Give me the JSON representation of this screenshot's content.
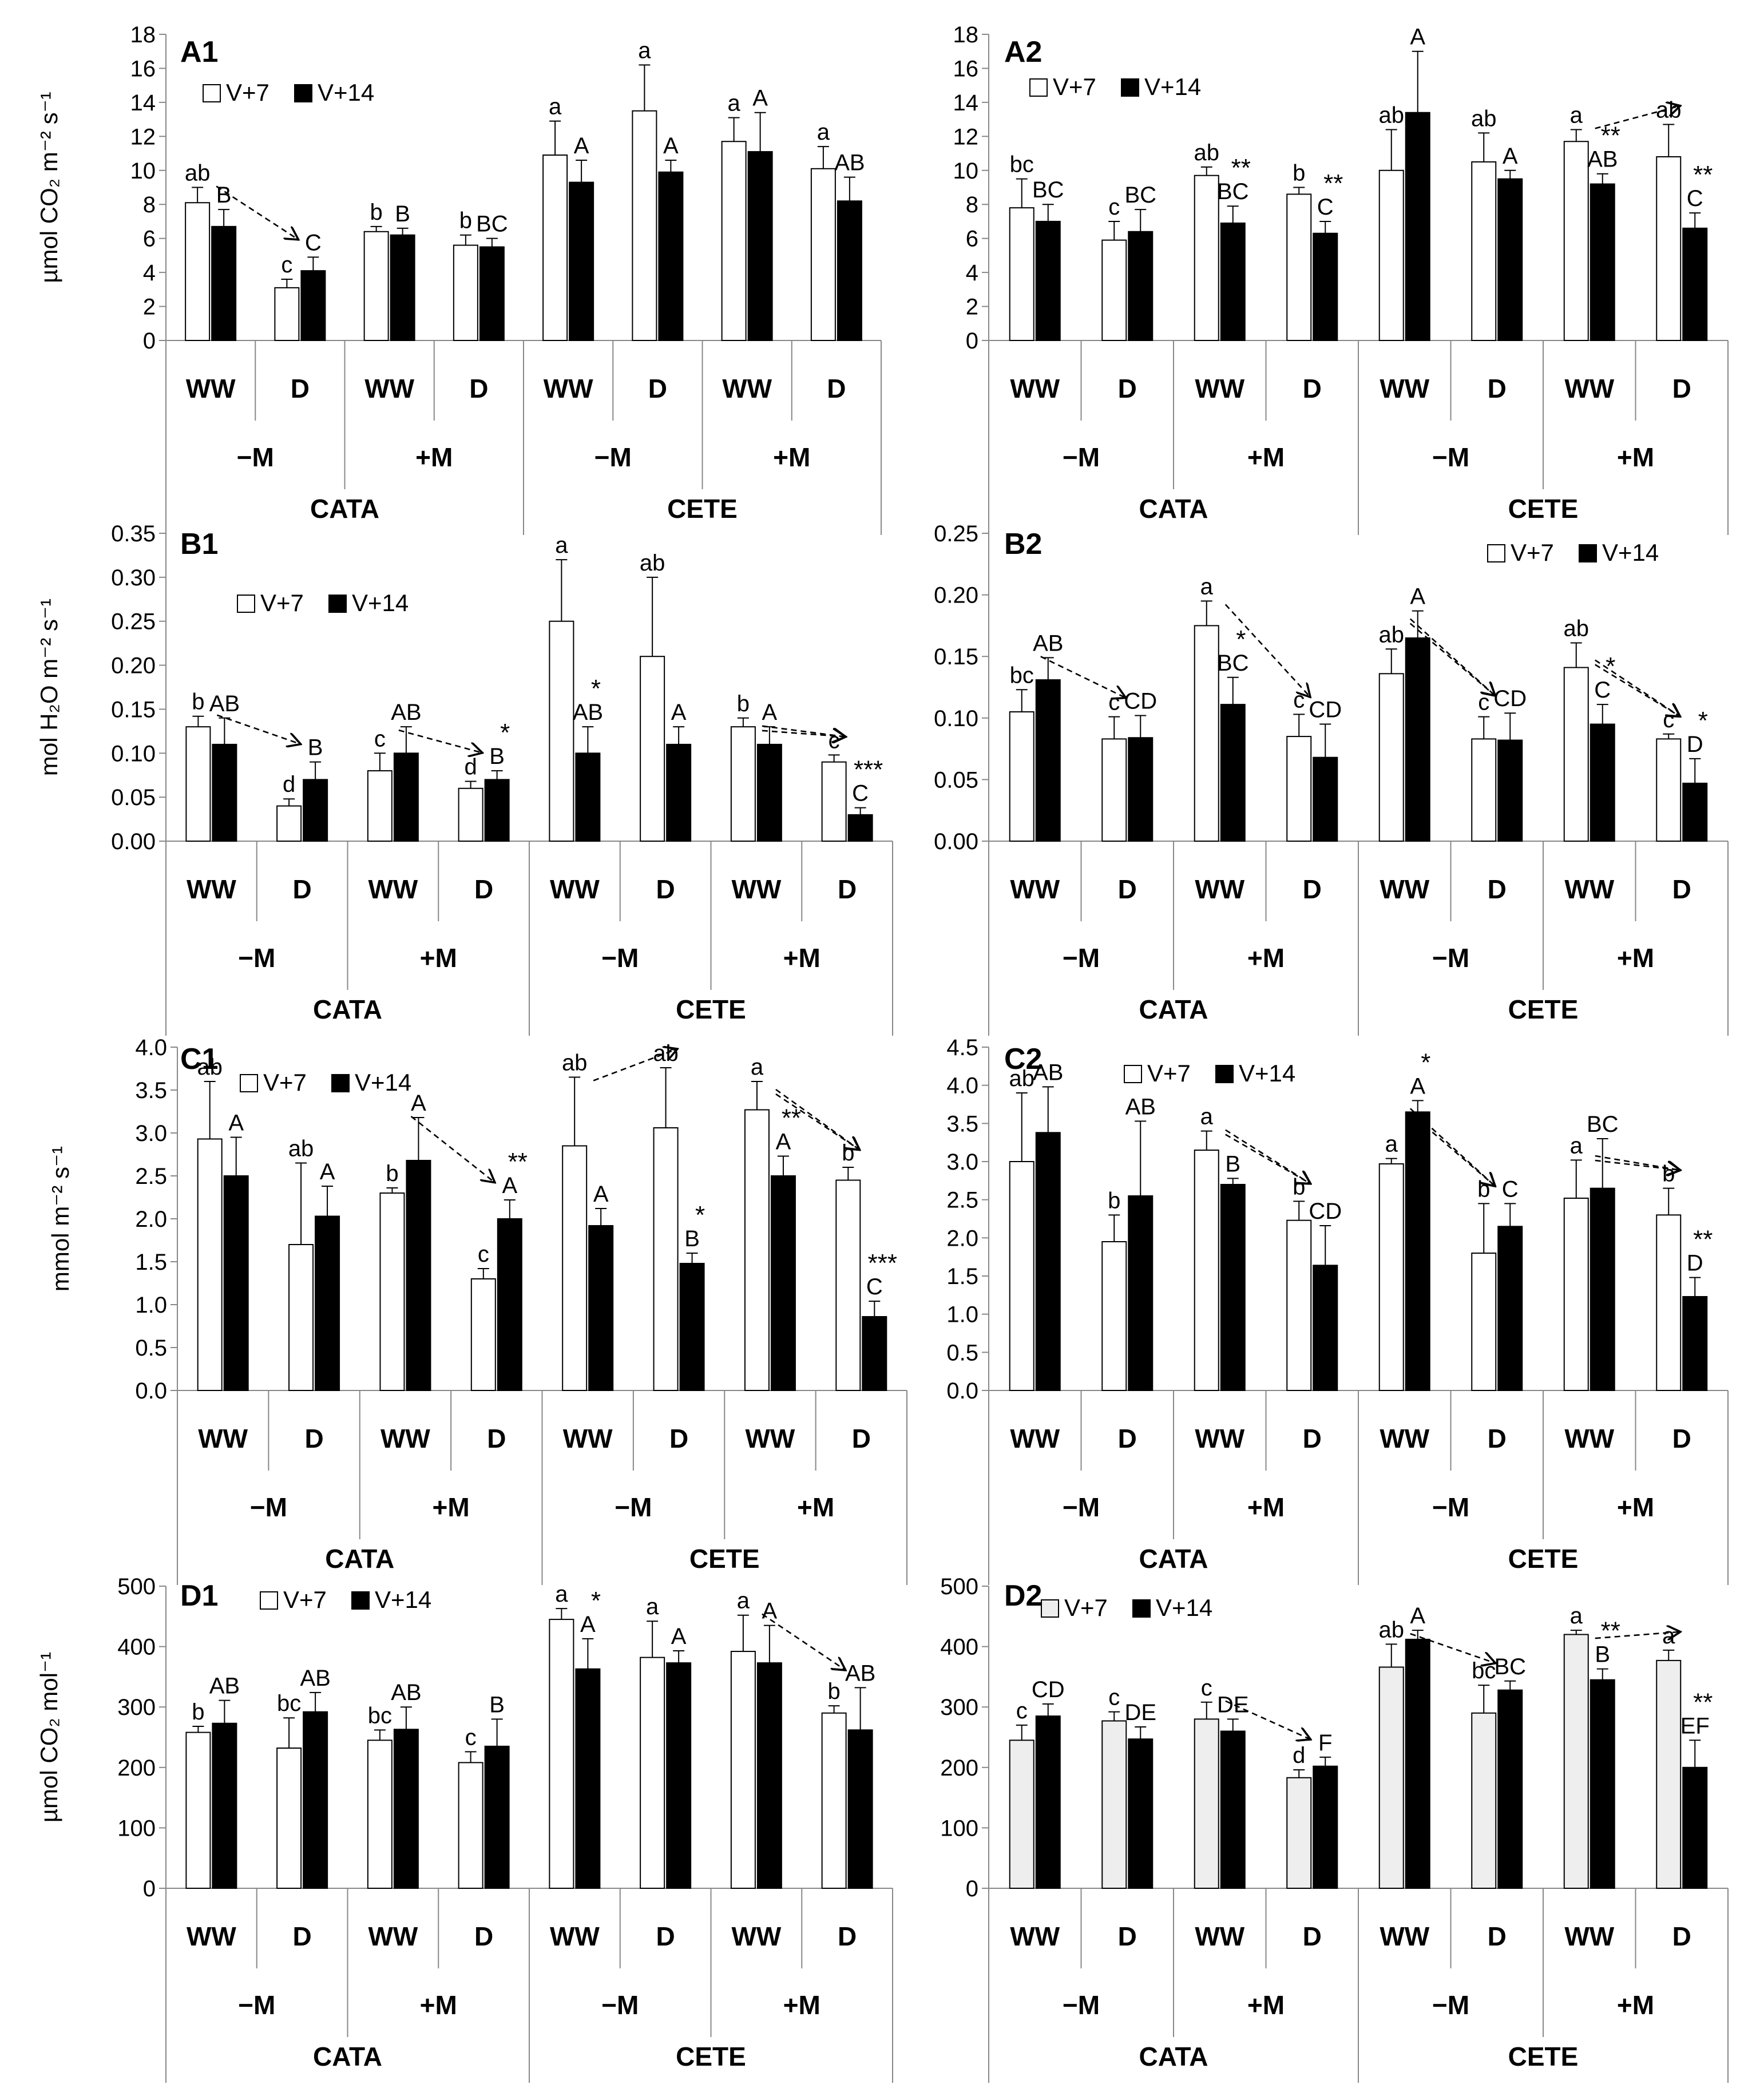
{
  "legend": {
    "v7": "V+7",
    "v14": "V+14"
  },
  "x_groups": {
    "water": [
      "WW",
      "D",
      "WW",
      "D",
      "WW",
      "D",
      "WW",
      "D"
    ],
    "mycorrhiza": [
      "−M",
      "+M",
      "−M",
      "+M"
    ],
    "genotype": [
      "CATA",
      "CETE"
    ]
  },
  "colors": {
    "v7": "#ffffff",
    "v7_d2": "#eeeeee",
    "v14": "#000000"
  },
  "chart_data": [
    {
      "id": "A1",
      "type": "bar",
      "ylabel": "µmol CO₂ m⁻² s⁻¹",
      "ylim": [
        0,
        18
      ],
      "yticks": [
        "0",
        "2",
        "4",
        "6",
        "8",
        "10",
        "12",
        "14",
        "16",
        "18"
      ],
      "legend_position": "top-left",
      "series": [
        {
          "name": "V+7",
          "values": [
            8.1,
            3.1,
            6.4,
            5.6,
            10.9,
            13.5,
            11.7,
            10.1
          ],
          "err": [
            0.9,
            0.5,
            0.3,
            0.6,
            2.0,
            2.7,
            1.4,
            1.3
          ],
          "labels": [
            "ab",
            "c",
            "b",
            "b",
            "a",
            "a",
            "a",
            "a"
          ]
        },
        {
          "name": "V+14",
          "values": [
            6.7,
            4.1,
            6.2,
            5.5,
            9.3,
            9.9,
            11.1,
            8.2
          ],
          "err": [
            1.0,
            0.8,
            0.4,
            0.5,
            1.3,
            0.7,
            2.3,
            1.4
          ],
          "labels": [
            "B",
            "C",
            "B",
            "BC",
            "A",
            "A",
            "A",
            "AB"
          ]
        }
      ],
      "annotations": [],
      "arrows": [
        [
          0,
          1
        ]
      ]
    },
    {
      "id": "A2",
      "type": "bar",
      "ylabel": "",
      "ylim": [
        0,
        18
      ],
      "yticks": [
        "0",
        "2",
        "4",
        "6",
        "8",
        "10",
        "12",
        "14",
        "16",
        "18"
      ],
      "legend_position": "top-left",
      "series": [
        {
          "name": "V+7",
          "values": [
            7.8,
            5.9,
            9.7,
            8.6,
            10.0,
            10.5,
            11.7,
            10.8
          ],
          "err": [
            1.7,
            1.1,
            0.5,
            0.4,
            2.4,
            1.7,
            0.7,
            1.9
          ],
          "labels": [
            "bc",
            "c",
            "ab",
            "b",
            "ab",
            "ab",
            "a",
            "ab"
          ]
        },
        {
          "name": "V+14",
          "values": [
            7.0,
            6.4,
            6.9,
            6.3,
            13.4,
            9.5,
            9.2,
            6.6
          ],
          "err": [
            1.0,
            1.3,
            1.0,
            0.7,
            3.6,
            0.5,
            0.6,
            0.9
          ],
          "labels": [
            "BC",
            "BC",
            "BC",
            "C",
            "A",
            "A",
            "AB",
            "C"
          ]
        }
      ],
      "annotations": [
        "",
        "",
        "**",
        "**",
        "",
        "",
        "**",
        "**"
      ],
      "arrows": [
        [
          6,
          7
        ]
      ]
    },
    {
      "id": "B1",
      "type": "bar",
      "ylabel": "mol H₂O m⁻² s⁻¹",
      "ylim": [
        0,
        0.35
      ],
      "yticks": [
        "0.00",
        "0.05",
        "0.10",
        "0.15",
        "0.20",
        "0.25",
        "0.30",
        "0.35"
      ],
      "legend_position": "top-left",
      "series": [
        {
          "name": "V+7",
          "values": [
            0.13,
            0.04,
            0.08,
            0.06,
            0.25,
            0.21,
            0.13,
            0.09
          ],
          "err": [
            0.012,
            0.008,
            0.02,
            0.008,
            0.07,
            0.09,
            0.01,
            0.008
          ],
          "labels": [
            "b",
            "d",
            "c",
            "d",
            "a",
            "ab",
            "b",
            "c"
          ]
        },
        {
          "name": "V+14",
          "values": [
            0.11,
            0.07,
            0.1,
            0.07,
            0.1,
            0.11,
            0.11,
            0.03
          ],
          "err": [
            0.03,
            0.02,
            0.03,
            0.01,
            0.03,
            0.02,
            0.02,
            0.008
          ],
          "labels": [
            "AB",
            "B",
            "AB",
            "B",
            "AB",
            "A",
            "A",
            "C"
          ]
        }
      ],
      "annotations": [
        "",
        "",
        "",
        "*",
        "*",
        "",
        "",
        "***"
      ],
      "arrows": [
        [
          0,
          1
        ],
        [
          2,
          3
        ],
        [
          6,
          7
        ],
        [
          6,
          7
        ]
      ]
    },
    {
      "id": "B2",
      "type": "bar",
      "ylabel": "",
      "ylim": [
        0,
        0.25
      ],
      "yticks": [
        "0.00",
        "0.05",
        "0.10",
        "0.15",
        "0.20",
        "0.25"
      ],
      "legend_position": "top-right",
      "series": [
        {
          "name": "V+7",
          "values": [
            0.105,
            0.083,
            0.175,
            0.085,
            0.136,
            0.083,
            0.141,
            0.083
          ],
          "err": [
            0.018,
            0.018,
            0.02,
            0.018,
            0.02,
            0.018,
            0.02,
            0.004
          ],
          "labels": [
            "bc",
            "c",
            "a",
            "c",
            "ab",
            "c",
            "ab",
            "c"
          ]
        },
        {
          "name": "V+14",
          "values": [
            0.131,
            0.084,
            0.111,
            0.068,
            0.165,
            0.082,
            0.095,
            0.047
          ],
          "err": [
            0.018,
            0.018,
            0.022,
            0.027,
            0.022,
            0.022,
            0.016,
            0.02
          ],
          "labels": [
            "AB",
            "CD",
            "BC",
            "CD",
            "A",
            "CD",
            "C",
            "D"
          ]
        }
      ],
      "annotations": [
        "",
        "",
        "*",
        "",
        "",
        "",
        "*",
        "*"
      ],
      "arrows": [
        [
          0,
          1
        ],
        [
          2,
          3
        ],
        [
          4,
          5
        ],
        [
          4,
          5
        ],
        [
          6,
          7
        ],
        [
          6,
          7
        ]
      ]
    },
    {
      "id": "C1",
      "type": "bar",
      "ylabel": "mmol m⁻² s⁻¹",
      "ylim": [
        0,
        4.0
      ],
      "yticks": [
        "0.0",
        "0.5",
        "1.0",
        "1.5",
        "2.0",
        "2.5",
        "3.0",
        "3.5",
        "4.0"
      ],
      "legend_position": "top-left",
      "series": [
        {
          "name": "V+7",
          "values": [
            2.93,
            1.7,
            2.3,
            1.3,
            2.85,
            3.06,
            3.27,
            2.45
          ],
          "err": [
            0.67,
            0.95,
            0.06,
            0.12,
            0.8,
            0.7,
            0.33,
            0.15
          ],
          "labels": [
            "ab",
            "ab",
            "b",
            "c",
            "ab",
            "ab",
            "a",
            "b"
          ]
        },
        {
          "name": "V+14",
          "values": [
            2.5,
            2.03,
            2.68,
            2.0,
            1.92,
            1.48,
            2.5,
            0.86
          ],
          "err": [
            0.45,
            0.35,
            0.5,
            0.22,
            0.2,
            0.12,
            0.23,
            0.18
          ],
          "labels": [
            "A",
            "A",
            "A",
            "A",
            "A",
            "B",
            "A",
            "C"
          ]
        }
      ],
      "annotations": [
        "",
        "",
        "",
        "**",
        "",
        "*",
        "**",
        "***"
      ],
      "arrows": [
        [
          2,
          3
        ],
        [
          4,
          5
        ],
        [
          6,
          7
        ],
        [
          6,
          7
        ]
      ]
    },
    {
      "id": "C2",
      "type": "bar",
      "ylabel": "",
      "ylim": [
        0,
        4.5
      ],
      "yticks": [
        "0.0",
        "0.5",
        "1.0",
        "1.5",
        "2.0",
        "2.5",
        "3.0",
        "3.5",
        "4.0",
        "4.5"
      ],
      "legend_position": "top-left",
      "series": [
        {
          "name": "V+7",
          "values": [
            3.0,
            1.95,
            3.15,
            2.23,
            2.97,
            1.8,
            2.52,
            2.3
          ],
          "err": [
            0.9,
            0.35,
            0.25,
            0.25,
            0.07,
            0.65,
            0.5,
            0.35
          ],
          "labels": [
            "ab",
            "b",
            "a",
            "b",
            "a",
            "b",
            "a",
            "b"
          ]
        },
        {
          "name": "V+14",
          "values": [
            3.38,
            2.55,
            2.7,
            1.64,
            3.65,
            2.15,
            2.65,
            1.23
          ],
          "err": [
            0.6,
            0.98,
            0.08,
            0.52,
            0.15,
            0.3,
            0.65,
            0.25
          ],
          "labels": [
            "AB",
            "AB",
            "B",
            "CD",
            "A",
            "C",
            "BC",
            "D"
          ]
        }
      ],
      "annotations": [
        "",
        "",
        "",
        "",
        "*",
        "",
        "",
        "**"
      ],
      "arrows": [
        [
          2,
          3
        ],
        [
          2,
          3
        ],
        [
          4,
          5
        ],
        [
          4,
          5
        ],
        [
          6,
          7
        ],
        [
          6,
          7
        ]
      ]
    },
    {
      "id": "D1",
      "type": "bar",
      "ylabel": "µmol CO₂ mol⁻¹",
      "ylim": [
        0,
        500
      ],
      "yticks": [
        "0",
        "100",
        "200",
        "300",
        "400",
        "500"
      ],
      "legend_position": "top-left",
      "series": [
        {
          "name": "V+7",
          "values": [
            258,
            232,
            245,
            208,
            445,
            382,
            392,
            290
          ],
          "err": [
            10,
            50,
            17,
            18,
            18,
            60,
            60,
            12
          ],
          "labels": [
            "b",
            "bc",
            "bc",
            "c",
            "a",
            "a",
            "a",
            "b"
          ]
        },
        {
          "name": "V+14",
          "values": [
            273,
            292,
            263,
            235,
            363,
            373,
            373,
            262
          ],
          "err": [
            38,
            32,
            37,
            45,
            50,
            20,
            62,
            70
          ],
          "labels": [
            "AB",
            "AB",
            "AB",
            "B",
            "A",
            "A",
            "A",
            "AB"
          ]
        }
      ],
      "annotations": [
        "",
        "",
        "",
        "",
        "*",
        "",
        "",
        ""
      ],
      "arrows": [
        [
          6,
          7
        ]
      ]
    },
    {
      "id": "D2",
      "type": "bar",
      "ylabel": "",
      "ylim": [
        0,
        500
      ],
      "yticks": [
        "0",
        "100",
        "200",
        "300",
        "400",
        "500"
      ],
      "legend_position": "top-left",
      "series": [
        {
          "name": "V+7",
          "values": [
            245,
            277,
            280,
            183,
            366,
            290,
            420,
            377
          ],
          "err": [
            25,
            15,
            28,
            13,
            38,
            46,
            7,
            17
          ],
          "labels": [
            "c",
            "c",
            "c",
            "d",
            "ab",
            "bc",
            "a",
            "a"
          ]
        },
        {
          "name": "V+14",
          "values": [
            285,
            247,
            260,
            202,
            412,
            328,
            345,
            200
          ],
          "err": [
            20,
            20,
            20,
            15,
            15,
            15,
            18,
            45
          ],
          "labels": [
            "CD",
            "DE",
            "DE",
            "F",
            "A",
            "BC",
            "B",
            "EF"
          ]
        }
      ],
      "annotations": [
        "",
        "",
        "",
        "",
        "",
        "",
        "**",
        "**"
      ],
      "arrows": [
        [
          2,
          3
        ],
        [
          4,
          5
        ],
        [
          6,
          7
        ]
      ]
    }
  ]
}
